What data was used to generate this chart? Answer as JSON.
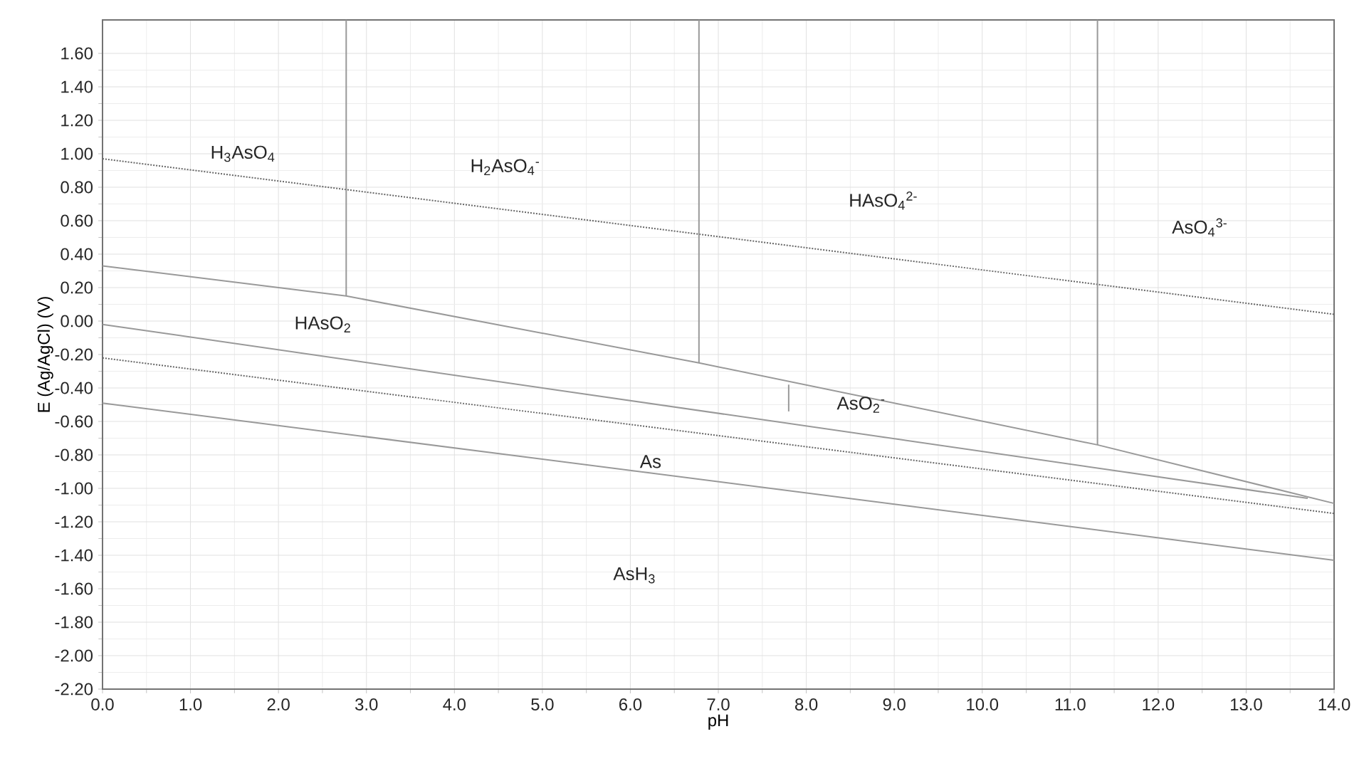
{
  "chart_data": {
    "type": "line",
    "xlabel": "pH",
    "ylabel": "E (Ag/AgCl) (V)",
    "xlim": [
      0,
      14
    ],
    "ylim": [
      -2.2,
      1.8
    ],
    "xticks": [
      {
        "value": 0,
        "label": "0.0"
      },
      {
        "value": 1,
        "label": "1.0"
      },
      {
        "value": 2,
        "label": "2.0"
      },
      {
        "value": 3,
        "label": "3.0"
      },
      {
        "value": 4,
        "label": "4.0"
      },
      {
        "value": 5,
        "label": "5.0"
      },
      {
        "value": 6,
        "label": "6.0"
      },
      {
        "value": 7,
        "label": "7.0"
      },
      {
        "value": 8,
        "label": "8.0"
      },
      {
        "value": 9,
        "label": "9.0"
      },
      {
        "value": 10,
        "label": "10.0"
      },
      {
        "value": 11,
        "label": "11.0"
      },
      {
        "value": 12,
        "label": "12.0"
      },
      {
        "value": 13,
        "label": "13.0"
      },
      {
        "value": 14,
        "label": "14.0"
      }
    ],
    "yticks": [
      {
        "value": -2.2,
        "label": "-2.20"
      },
      {
        "value": -2.0,
        "label": "-2.00"
      },
      {
        "value": -1.8,
        "label": "-1.80"
      },
      {
        "value": -1.6,
        "label": "-1.60"
      },
      {
        "value": -1.4,
        "label": "-1.40"
      },
      {
        "value": -1.2,
        "label": "-1.20"
      },
      {
        "value": -1.0,
        "label": "-1.00"
      },
      {
        "value": -0.8,
        "label": "-0.80"
      },
      {
        "value": -0.6,
        "label": "-0.60"
      },
      {
        "value": -0.4,
        "label": "-0.40"
      },
      {
        "value": -0.2,
        "label": "-0.20"
      },
      {
        "value": 0,
        "label": "0.00"
      },
      {
        "value": 0.2,
        "label": "0.20"
      },
      {
        "value": 0.4,
        "label": "0.40"
      },
      {
        "value": 0.6,
        "label": "0.60"
      },
      {
        "value": 0.8,
        "label": "0.80"
      },
      {
        "value": 1.0,
        "label": "1.00"
      },
      {
        "value": 1.2,
        "label": "1.20"
      },
      {
        "value": 1.4,
        "label": "1.40"
      },
      {
        "value": 1.6,
        "label": "1.60"
      }
    ],
    "grid": true,
    "marker": "none",
    "series": [
      {
        "x": [
          0,
          14
        ],
        "values": [
          0.97,
          0.04
        ],
        "color": "#666666",
        "line_style": "dotted"
      },
      {
        "x": [
          0,
          14
        ],
        "values": [
          -0.22,
          -1.15
        ],
        "color": "#666666",
        "line_style": "dotted"
      },
      {
        "x": [
          0,
          2.77,
          6.78,
          11.31,
          14
        ],
        "values": [
          0.33,
          0.15,
          -0.25,
          -0.74,
          -1.09
        ],
        "color": "#999999",
        "line_style": "solid"
      },
      {
        "x": [
          0,
          13.7
        ],
        "values": [
          -0.02,
          -1.06
        ],
        "color": "#999999",
        "line_style": "solid"
      },
      {
        "x": [
          0,
          14
        ],
        "values": [
          -0.49,
          -1.43
        ],
        "color": "#999999",
        "line_style": "solid"
      },
      {
        "x": [
          2.77,
          2.77
        ],
        "values": [
          0.15,
          1.8
        ],
        "color": "#999999",
        "line_style": "solid"
      },
      {
        "x": [
          6.78,
          6.78
        ],
        "values": [
          -0.25,
          1.8
        ],
        "color": "#999999",
        "line_style": "solid"
      },
      {
        "x": [
          11.31,
          11.31
        ],
        "values": [
          -0.74,
          1.8
        ],
        "color": "#999999",
        "line_style": "solid"
      },
      {
        "x": [
          7.8,
          7.8
        ],
        "values": [
          -0.38,
          -0.54
        ],
        "color": "#999999",
        "line_style": "solid"
      }
    ],
    "annotations": [
      "H$_{3}$AsO$_{4}$",
      "H$_{2}$AsO$_{4}$$^{-}$",
      "HAsO$_{4}$$^{2-}$",
      "AsO$_{4}$$^{3-}$",
      "HAsO$_{2}$",
      "AsO$_{2}$$^{-}$",
      "As",
      "AsH$_{3}$"
    ]
  }
}
